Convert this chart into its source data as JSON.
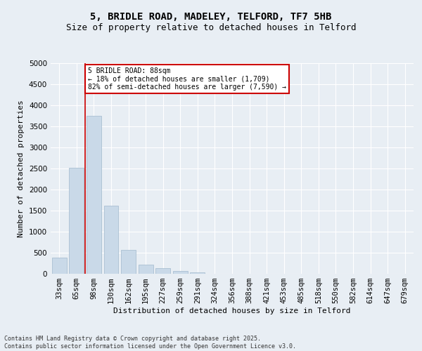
{
  "title1": "5, BRIDLE ROAD, MADELEY, TELFORD, TF7 5HB",
  "title2": "Size of property relative to detached houses in Telford",
  "xlabel": "Distribution of detached houses by size in Telford",
  "ylabel": "Number of detached properties",
  "categories": [
    "33sqm",
    "65sqm",
    "98sqm",
    "130sqm",
    "162sqm",
    "195sqm",
    "227sqm",
    "259sqm",
    "291sqm",
    "324sqm",
    "356sqm",
    "388sqm",
    "421sqm",
    "453sqm",
    "485sqm",
    "518sqm",
    "550sqm",
    "582sqm",
    "614sqm",
    "647sqm",
    "679sqm"
  ],
  "values": [
    380,
    2520,
    3750,
    1620,
    560,
    220,
    130,
    60,
    35,
    0,
    0,
    0,
    0,
    0,
    0,
    0,
    0,
    0,
    0,
    0,
    0
  ],
  "bar_color": "#c9d9e8",
  "bar_edgecolor": "#a0b8cc",
  "vline_color": "#cc0000",
  "annotation_text": "5 BRIDLE ROAD: 88sqm\n← 18% of detached houses are smaller (1,709)\n82% of semi-detached houses are larger (7,590) →",
  "annotation_box_facecolor": "#ffffff",
  "annotation_box_edgecolor": "#cc0000",
  "ylim": [
    0,
    5000
  ],
  "yticks": [
    0,
    500,
    1000,
    1500,
    2000,
    2500,
    3000,
    3500,
    4000,
    4500,
    5000
  ],
  "background_color": "#e8eef4",
  "grid_color": "#ffffff",
  "footer1": "Contains HM Land Registry data © Crown copyright and database right 2025.",
  "footer2": "Contains public sector information licensed under the Open Government Licence v3.0.",
  "title_fontsize": 10,
  "subtitle_fontsize": 9,
  "axis_label_fontsize": 8,
  "tick_fontsize": 7.5,
  "footer_fontsize": 6
}
